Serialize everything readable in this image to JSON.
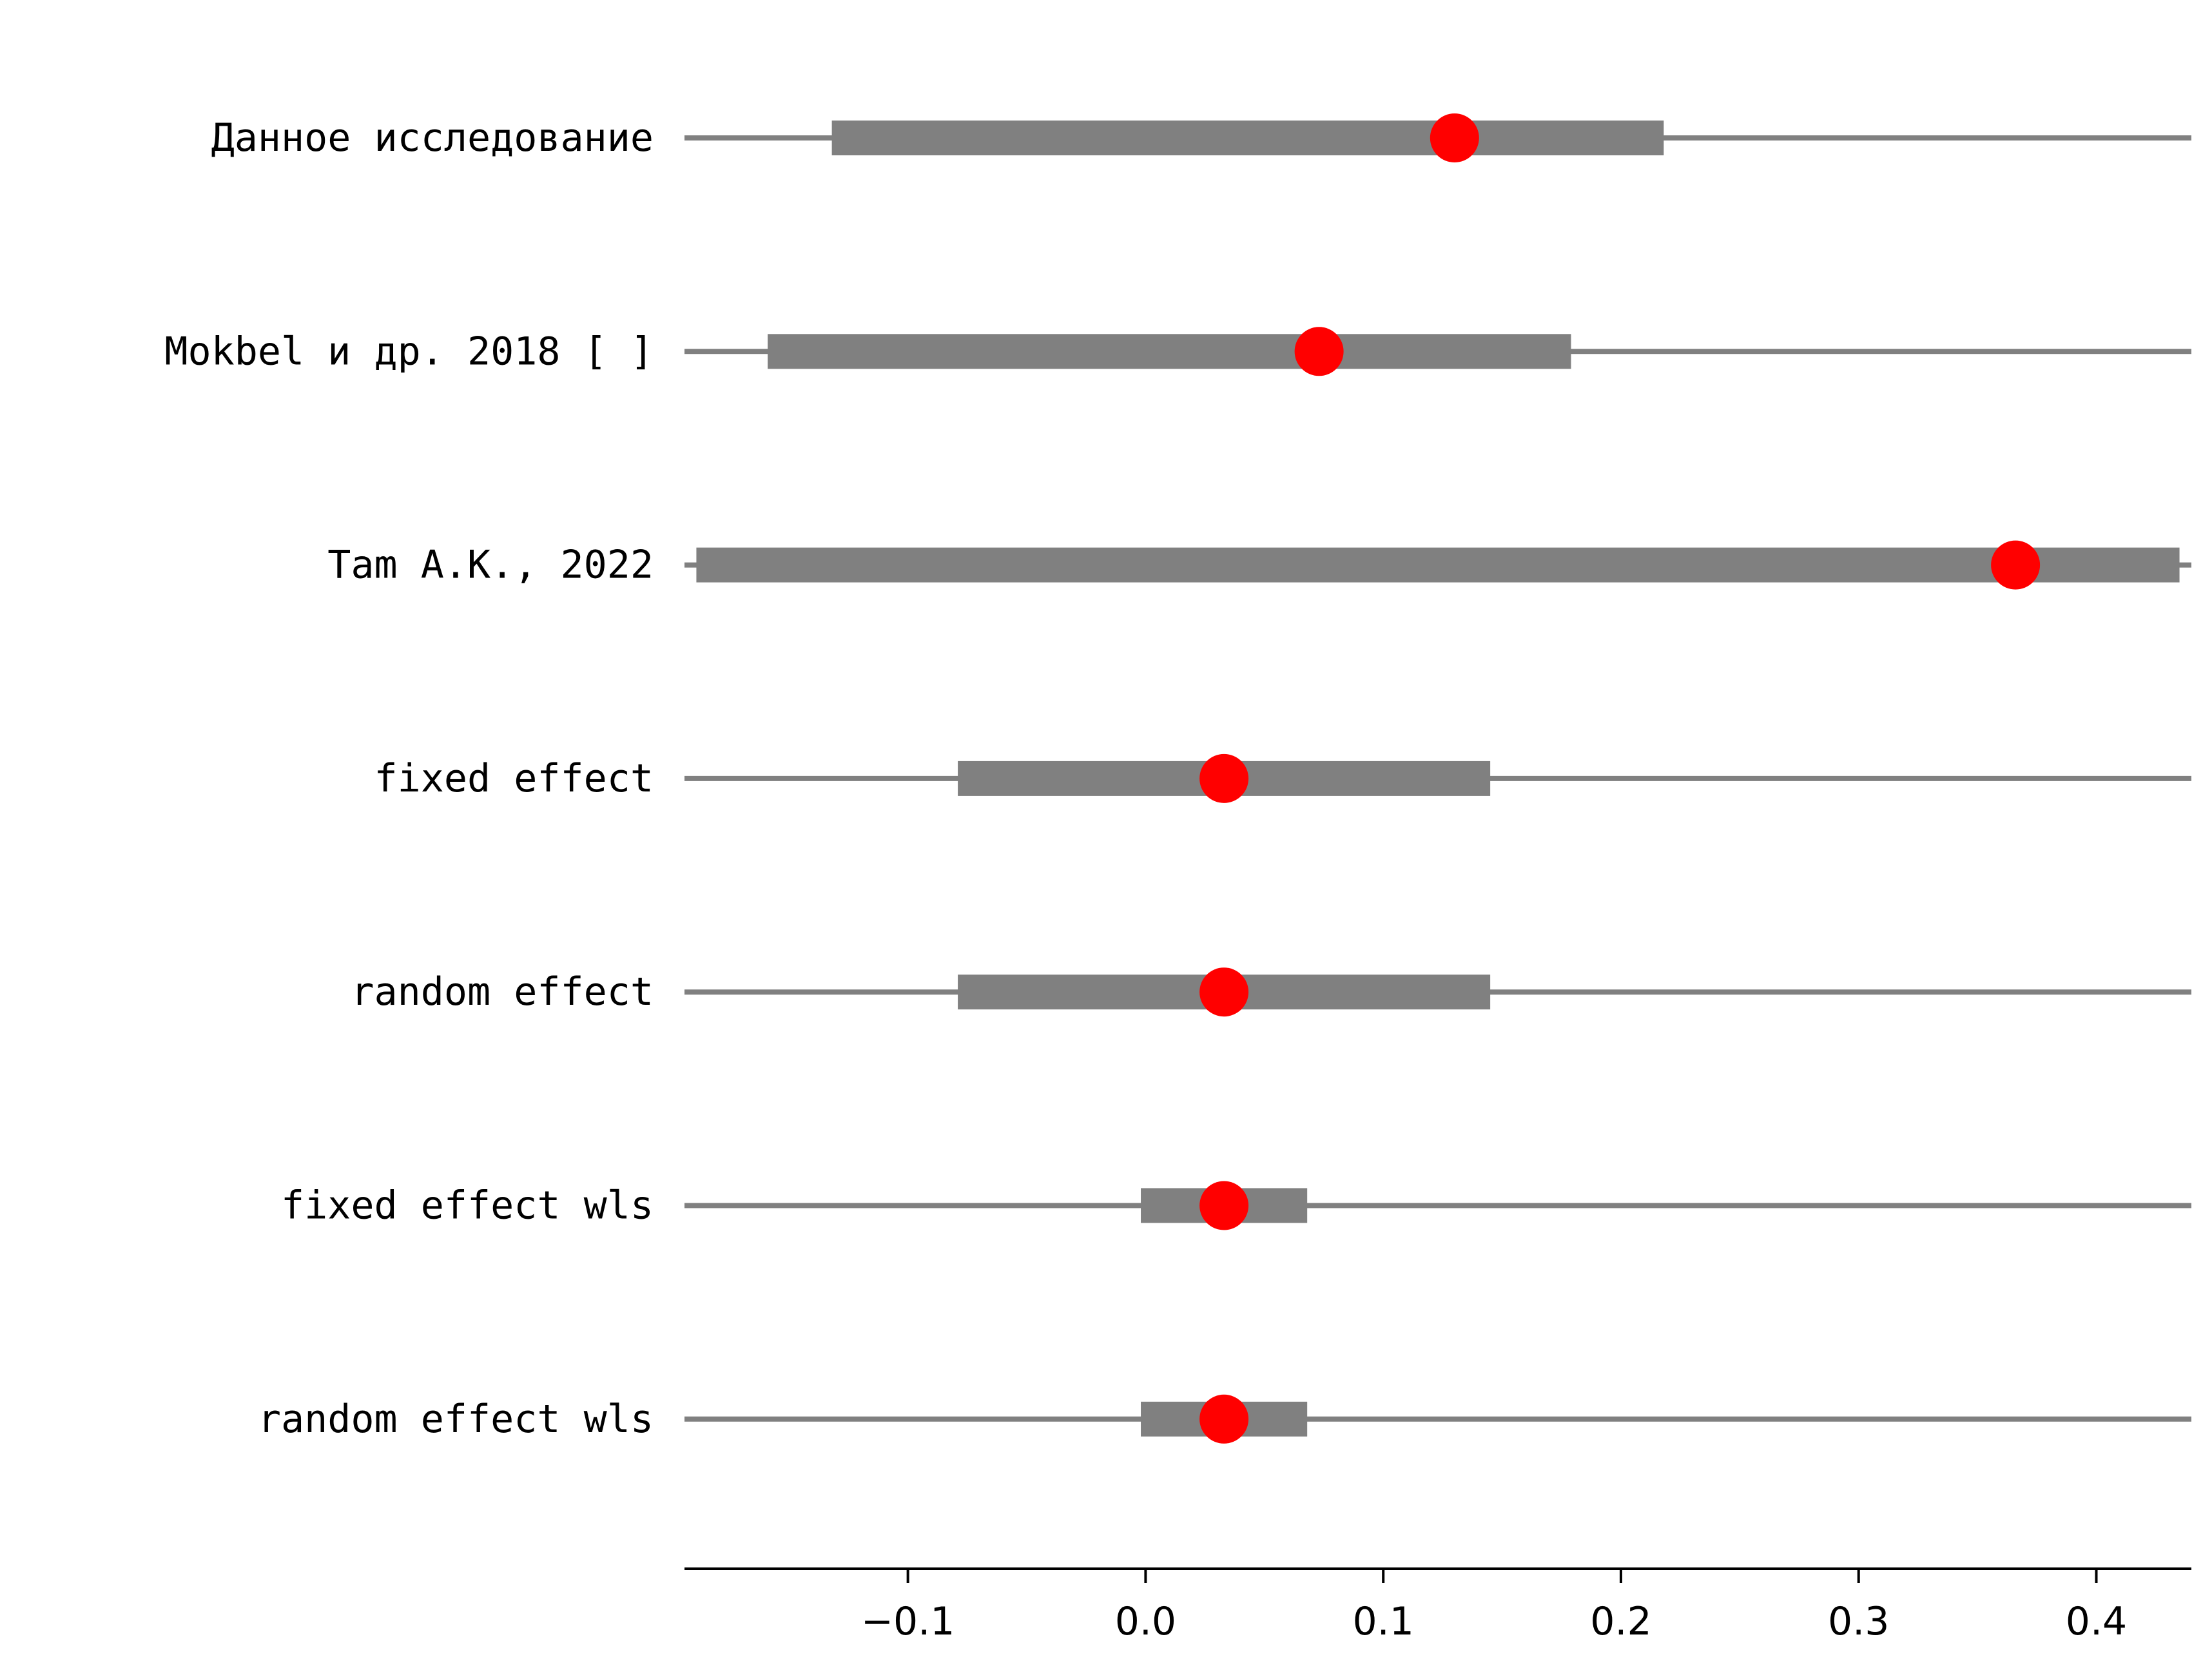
{
  "chart_data": {
    "type": "forest",
    "title": "",
    "xlabel": "",
    "ylabel": "",
    "xlim": [
      -0.194,
      0.44
    ],
    "xticks": [
      -0.1,
      0.0,
      0.1,
      0.2,
      0.3,
      0.4
    ],
    "xtick_labels": [
      "−0.1",
      "0.0",
      "0.1",
      "0.2",
      "0.3",
      "0.4"
    ],
    "grid": false,
    "legend": "none",
    "rows": [
      {
        "label": "Данное исследование",
        "estimate": 0.13,
        "ci_low": -0.132,
        "ci_high": 0.218
      },
      {
        "label": "Mokbel и др. 2018 [ ]",
        "estimate": 0.073,
        "ci_low": -0.159,
        "ci_high": 0.179
      },
      {
        "label": "Tam A.K., 2022",
        "estimate": 0.366,
        "ci_low": -0.189,
        "ci_high": 0.435
      },
      {
        "label": "fixed effect",
        "estimate": 0.033,
        "ci_low": -0.079,
        "ci_high": 0.145
      },
      {
        "label": "random effect",
        "estimate": 0.033,
        "ci_low": -0.079,
        "ci_high": 0.145
      },
      {
        "label": "fixed effect wls",
        "estimate": 0.033,
        "ci_low": -0.002,
        "ci_high": 0.068
      },
      {
        "label": "random effect wls",
        "estimate": 0.033,
        "ci_low": -0.002,
        "ci_high": 0.068
      }
    ],
    "colors": {
      "interval": "#808080",
      "marker": "#ff0000",
      "axis": "#000000"
    }
  }
}
